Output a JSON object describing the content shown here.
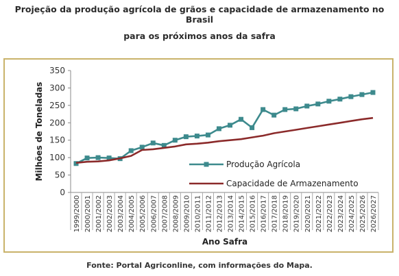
{
  "header": {
    "title_line1": "Projeção da produção agrícola de grãos e capacidade de armazenamento no Brasil",
    "title_line2": "para os próximos anos da safra"
  },
  "footer": {
    "source": "Fonte: Portal Agriconline, com informações do Mapa."
  },
  "chart_data": {
    "type": "line",
    "xlabel": "Ano Safra",
    "ylabel": "Milhões de Toneladas",
    "ylim": [
      0,
      350
    ],
    "yticks": [
      0,
      50,
      100,
      150,
      200,
      250,
      300,
      350
    ],
    "grid": false,
    "legend_position": "center-right",
    "categories": [
      "1999/2000",
      "2000/2001",
      "2001/2002",
      "2002/2003",
      "2003/2004",
      "2004/2005",
      "2005/2006",
      "2006/2007",
      "2007/2008",
      "2008/2009",
      "2009/2010",
      "2010/2011",
      "2011/2012",
      "2012/2013",
      "2013/2014",
      "2014/2015",
      "2015/2016",
      "2016/2017",
      "2017/2018",
      "2018/2019",
      "2019/2020",
      "2020/2021",
      "2021/2022",
      "2022/2023",
      "2023/2024",
      "2024/2025",
      "2025/2026",
      "2026/2027"
    ],
    "series": [
      {
        "name": "Produção Agrícola",
        "color": "#3d8a8d",
        "marker": "square",
        "values": [
          83,
          99,
          100,
          99,
          97,
          120,
          130,
          142,
          135,
          150,
          160,
          162,
          165,
          183,
          193,
          210,
          186,
          238,
          222,
          238,
          240,
          248,
          254,
          262,
          268,
          275,
          281,
          287
        ]
      },
      {
        "name": "Capacidade de Armazenamento",
        "color": "#8b2a2a",
        "marker": "none",
        "values": [
          85,
          88,
          89,
          92,
          98,
          105,
          122,
          124,
          128,
          132,
          138,
          140,
          143,
          147,
          150,
          153,
          158,
          163,
          170,
          175,
          180,
          185,
          190,
          195,
          200,
          205,
          210,
          214
        ]
      }
    ]
  }
}
